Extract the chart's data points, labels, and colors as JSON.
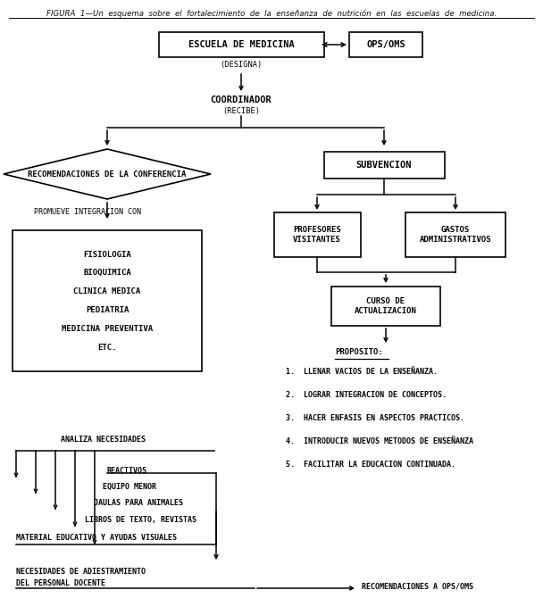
{
  "title": "FIGURA  1—Un  esquema  sobre  el  fortalecimiento  de  la  enseñanza  de  nutrición  en  las  escuelas  de  medicina.",
  "bg_color": "#ffffff",
  "proposito_items": [
    "1.  LLENAR VACIOS DE LA ENSEÑANZA.",
    "2.  LOGRAR INTEGRACION DE CONCEPTOS.",
    "3.  HACER ENFASIS EN ASPECTOS PRACTICOS.",
    "4.  INTRODUCIR NUEVOS METODOS DE ENSEÑANZA",
    "5.  FACILITAR LA EDUCACION CONTINUADA."
  ],
  "materias_items": [
    "FISIOLOGIA",
    "BIOQUIMICA",
    "CLINICA MEDICA",
    "PEDIATRIA",
    "MEDICINA PREVENTIVA",
    "ETC."
  ],
  "necesidades_items": [
    "REACTIVOS",
    "EQUIPO MENOR",
    "JAULAS PARA ANIMALES",
    "LIBROS DE TEXTO, REVISTAS",
    "MATERIAL EDUCATIVO Y AYUDAS VISUALES"
  ]
}
